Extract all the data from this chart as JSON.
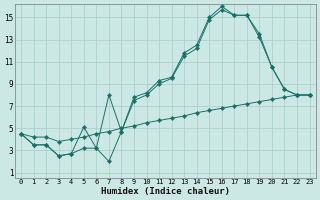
{
  "xlabel": "Humidex (Indice chaleur)",
  "bg_color": "#cce8e4",
  "line_color": "#1a7068",
  "grid_color": "#a8ccc8",
  "x_ticks": [
    0,
    1,
    2,
    3,
    4,
    5,
    6,
    7,
    8,
    9,
    10,
    11,
    12,
    13,
    14,
    15,
    16,
    17,
    18,
    19,
    20,
    21,
    22,
    23
  ],
  "y_ticks": [
    1,
    3,
    5,
    7,
    9,
    11,
    13,
    15
  ],
  "xlim": [
    -0.5,
    23.5
  ],
  "ylim": [
    0.5,
    16.2
  ],
  "line_zigzag_x": [
    0,
    1,
    2,
    3,
    4,
    5,
    6,
    7,
    8,
    9,
    10,
    11,
    12,
    13,
    14,
    15,
    16,
    17,
    18,
    19,
    20,
    21,
    22,
    23
  ],
  "line_zigzag_y": [
    4.5,
    3.5,
    3.5,
    2.5,
    2.7,
    3.2,
    3.2,
    2.0,
    4.7,
    7.5,
    8.0,
    9.0,
    9.5,
    11.5,
    12.2,
    14.8,
    15.7,
    15.2,
    15.2,
    13.2,
    10.5,
    8.5,
    8.0,
    8.0
  ],
  "line_upper_x": [
    0,
    1,
    2,
    3,
    4,
    5,
    6,
    7,
    8,
    9,
    10,
    11,
    12,
    13,
    14,
    15,
    16,
    17,
    18,
    19,
    20,
    21,
    22,
    23
  ],
  "line_upper_y": [
    4.5,
    3.5,
    3.5,
    2.5,
    2.7,
    5.1,
    3.2,
    8.0,
    4.7,
    7.8,
    8.2,
    9.3,
    9.6,
    11.8,
    12.5,
    15.0,
    16.0,
    15.2,
    15.2,
    13.5,
    10.5,
    8.5,
    8.0,
    8.0
  ],
  "line_straight_x": [
    0,
    1,
    2,
    3,
    4,
    5,
    6,
    7,
    8,
    9,
    10,
    11,
    12,
    13,
    14,
    15,
    16,
    17,
    18,
    19,
    20,
    21,
    22,
    23
  ],
  "line_straight_y": [
    4.5,
    4.2,
    4.2,
    3.8,
    4.0,
    4.2,
    4.5,
    4.7,
    5.0,
    5.2,
    5.5,
    5.7,
    5.9,
    6.1,
    6.4,
    6.6,
    6.8,
    7.0,
    7.2,
    7.4,
    7.6,
    7.8,
    8.0,
    8.0
  ]
}
